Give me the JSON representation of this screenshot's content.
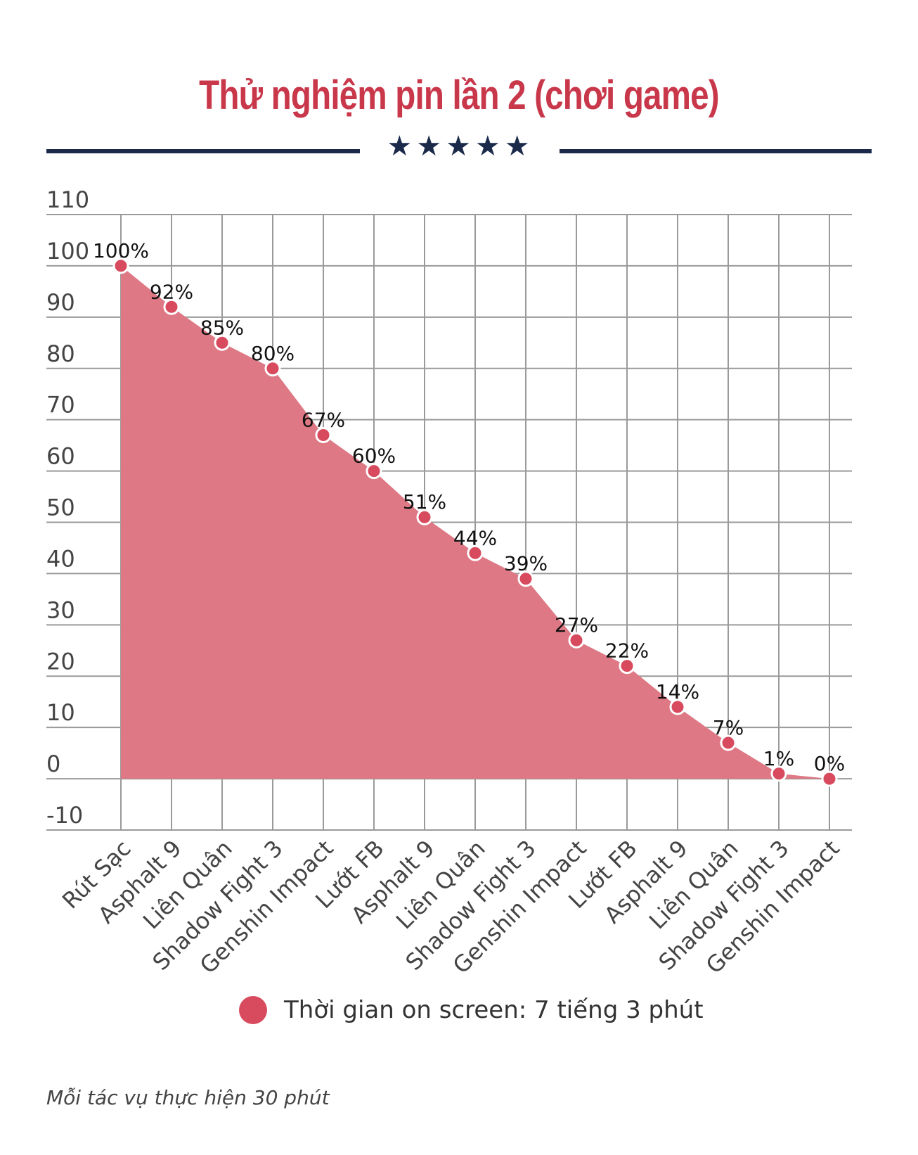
{
  "header": {
    "title": "Thử nghiệm pin lần 2 (chơi game)",
    "stars": "★★★★★"
  },
  "colors": {
    "title": "#c9374b",
    "rule": "#1b2a4a",
    "fill": "#dd7884",
    "marker": "#d84a5d",
    "grid": "#9a9a9a"
  },
  "chart_data": {
    "type": "area",
    "categories": [
      "Rút Sạc",
      "Asphalt 9",
      "Liên Quân",
      "Shadow Fight 3",
      "Genshin Impact",
      "Lướt FB",
      "Asphalt 9",
      "Liên Quân",
      "Shadow Fight 3",
      "Genshin Impact",
      "Lướt FB",
      "Asphalt 9",
      "Liên Quân",
      "Shadow Fight 3",
      "Genshin Impact"
    ],
    "series": [
      {
        "name": "Thời gian on screen: 7 tiếng 3 phút",
        "values": [
          100,
          92,
          85,
          80,
          67,
          60,
          51,
          44,
          39,
          27,
          22,
          14,
          7,
          1,
          0
        ],
        "labels": [
          "100%",
          "92%",
          "85%",
          "80%",
          "67%",
          "60%",
          "51%",
          "44%",
          "39%",
          "27%",
          "22%",
          "14%",
          "7%",
          "1%",
          "0%"
        ]
      }
    ],
    "ylim": [
      -10,
      110
    ],
    "yticks": [
      110,
      100,
      90,
      80,
      70,
      60,
      50,
      40,
      30,
      20,
      10,
      0,
      -10
    ],
    "grid": true,
    "legend": "bottom"
  },
  "legend": {
    "label": "Thời gian on screen: 7 tiếng 3 phút"
  },
  "footnote": "Mỗi tác vụ thực hiện 30 phút"
}
